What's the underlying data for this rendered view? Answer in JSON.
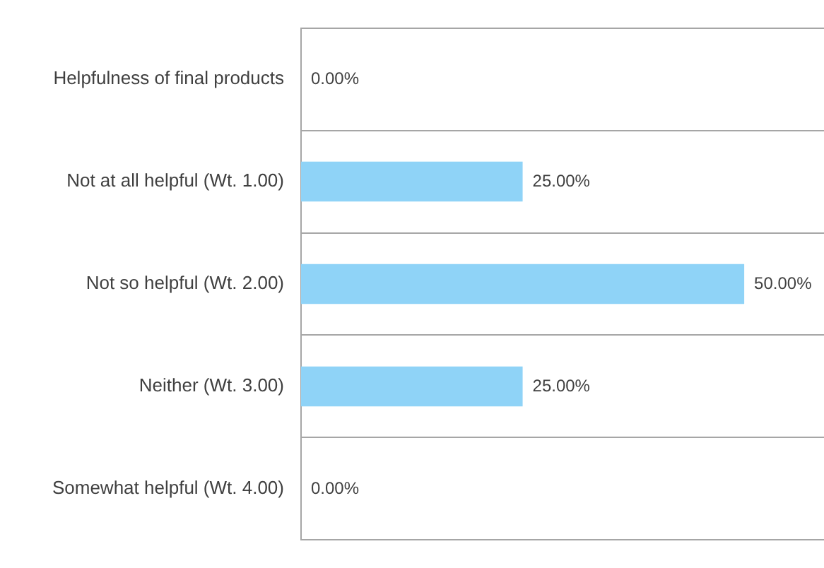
{
  "chart_data": {
    "type": "bar",
    "orientation": "horizontal",
    "categories": [
      "Helpfulness of final products",
      "Not at all helpful (Wt. 1.00)",
      "Not so helpful (Wt. 2.00)",
      "Neither (Wt. 3.00)",
      "Somewhat helpful (Wt. 4.00)"
    ],
    "values": [
      0,
      25,
      50,
      25,
      0
    ],
    "value_labels": [
      "0.00%",
      "25.00%",
      "50.00%",
      "25.00%",
      "0.00%"
    ],
    "color": "#8fd3f7",
    "grid": "y"
  }
}
